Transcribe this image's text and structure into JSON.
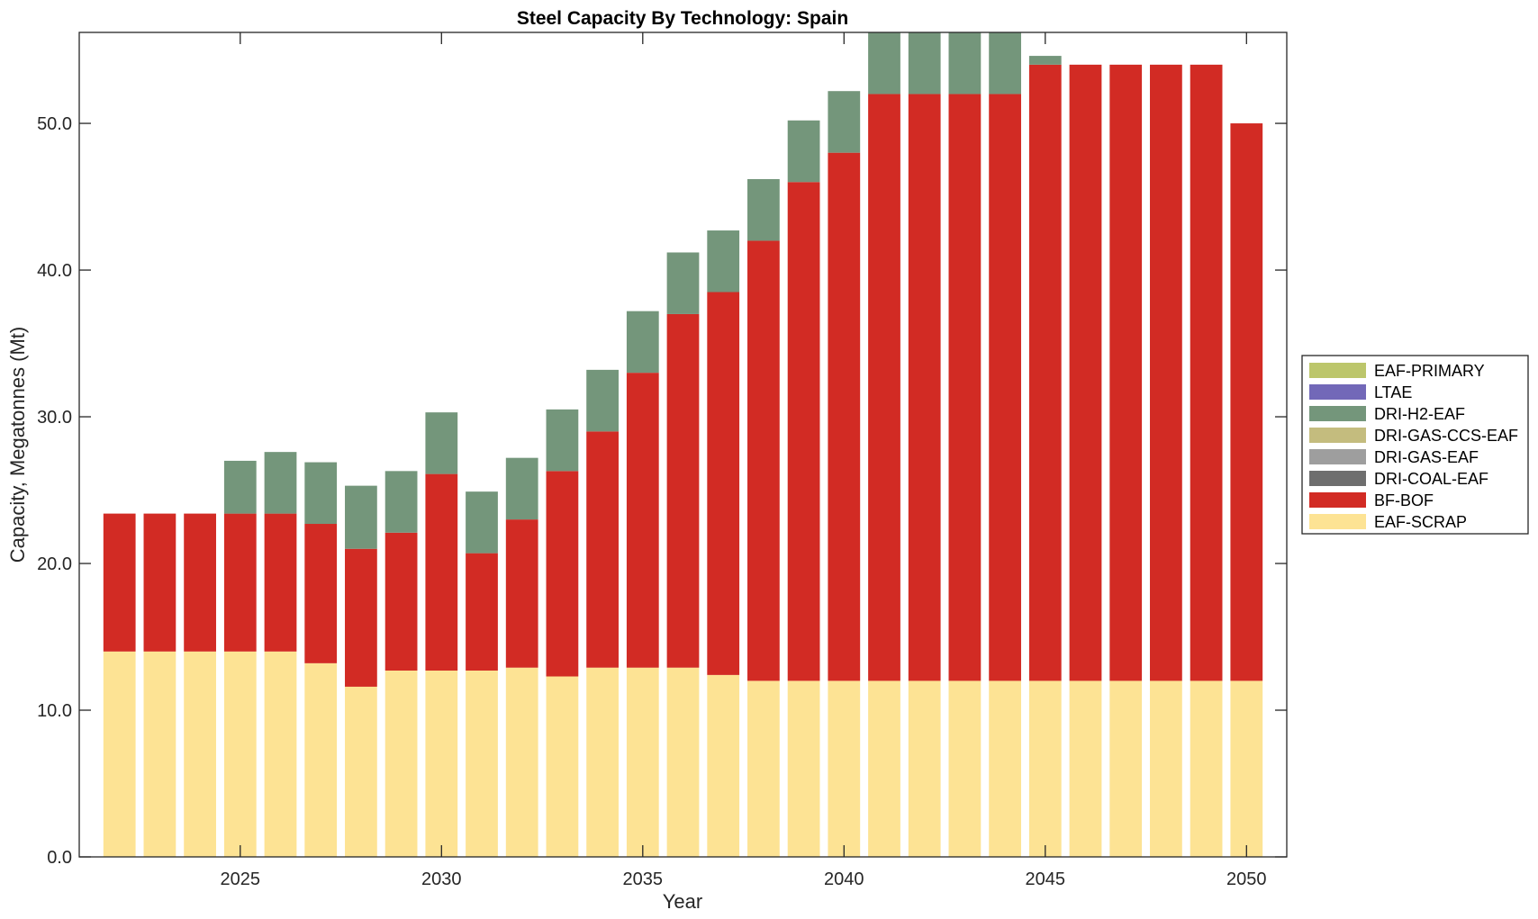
{
  "chart_data": {
    "type": "bar",
    "stacked": true,
    "title": "Steel Capacity By Technology: Spain",
    "xlabel": "Year",
    "ylabel": "Capacity, Megatonnes (Mt)",
    "xlim": [
      2021,
      2051
    ],
    "ylim": [
      0,
      56.2
    ],
    "xticks": [
      2025,
      2030,
      2035,
      2040,
      2045,
      2050
    ],
    "xtick_labels": [
      "2025",
      "2030",
      "2035",
      "2040",
      "2045",
      "2050"
    ],
    "yticks": [
      0,
      10,
      20,
      30,
      40,
      50
    ],
    "ytick_labels": [
      "0.0",
      "10.0",
      "20.0",
      "30.0",
      "40.0",
      "50.0"
    ],
    "grid": false,
    "legend_position": "right-outside",
    "categories": [
      2022,
      2023,
      2024,
      2025,
      2026,
      2027,
      2028,
      2029,
      2030,
      2031,
      2032,
      2033,
      2034,
      2035,
      2036,
      2037,
      2038,
      2039,
      2040,
      2041,
      2042,
      2043,
      2044,
      2045,
      2046,
      2047,
      2048,
      2049,
      2050
    ],
    "series": [
      {
        "name": "EAF-SCRAP",
        "color": "#fde394",
        "values": [
          14.0,
          14.0,
          14.0,
          14.0,
          14.0,
          13.2,
          11.6,
          12.7,
          12.7,
          12.7,
          12.9,
          12.3,
          12.9,
          12.9,
          12.9,
          12.4,
          12.0,
          12.0,
          12.0,
          12.0,
          12.0,
          12.0,
          12.0,
          12.0,
          12.0,
          12.0,
          12.0,
          12.0,
          12.0
        ]
      },
      {
        "name": "BF-BOF",
        "color": "#d22b24",
        "values": [
          9.4,
          9.4,
          9.4,
          9.4,
          9.4,
          9.5,
          9.4,
          9.4,
          13.4,
          8.0,
          10.1,
          14.0,
          16.1,
          20.1,
          24.1,
          26.1,
          30.0,
          34.0,
          36.0,
          40.0,
          40.0,
          40.0,
          40.0,
          42.0,
          42.0,
          42.0,
          42.0,
          42.0,
          38.0
        ]
      },
      {
        "name": "DRI-COAL-EAF",
        "color": "#6e6e6e",
        "values": [
          0,
          0,
          0,
          0,
          0,
          0,
          0,
          0,
          0,
          0,
          0,
          0,
          0,
          0,
          0,
          0,
          0,
          0,
          0,
          0,
          0,
          0,
          0,
          0,
          0,
          0,
          0,
          0,
          0
        ]
      },
      {
        "name": "DRI-GAS-EAF",
        "color": "#9e9e9e",
        "values": [
          0,
          0,
          0,
          0,
          0,
          0,
          0,
          0,
          0,
          0,
          0,
          0,
          0,
          0,
          0,
          0,
          0,
          0,
          0,
          0,
          0,
          0,
          0,
          0,
          0,
          0,
          0,
          0,
          0
        ]
      },
      {
        "name": "DRI-GAS-CCS-EAF",
        "color": "#c4bc7e",
        "values": [
          0,
          0,
          0,
          0,
          0,
          0,
          0,
          0,
          0,
          0,
          0,
          0,
          0,
          0,
          0,
          0,
          0,
          0,
          0,
          0,
          0,
          0,
          0,
          0,
          0,
          0,
          0,
          0,
          0
        ]
      },
      {
        "name": "DRI-H2-EAF",
        "color": "#74967b",
        "values": [
          0,
          0,
          0,
          3.6,
          4.2,
          4.2,
          4.3,
          4.2,
          4.2,
          4.2,
          4.2,
          4.2,
          4.2,
          4.2,
          4.2,
          4.2,
          4.2,
          4.2,
          4.2,
          4.2,
          4.2,
          4.2,
          4.2,
          0.6,
          0,
          0,
          0,
          0,
          0
        ]
      },
      {
        "name": "LTAE",
        "color": "#7268b8",
        "values": [
          0,
          0,
          0,
          0,
          0,
          0,
          0,
          0,
          0,
          0,
          0,
          0,
          0,
          0,
          0,
          0,
          0,
          0,
          0,
          0,
          0,
          0,
          0,
          0,
          0,
          0,
          0,
          0,
          0
        ]
      },
      {
        "name": "EAF-PRIMARY",
        "color": "#bcc66b",
        "values": [
          0,
          0,
          0,
          0,
          0,
          0,
          0,
          0,
          0,
          0,
          0,
          0,
          0,
          0,
          0,
          0,
          0,
          0,
          0,
          0,
          0,
          0,
          0,
          0,
          0,
          0,
          0,
          0,
          0
        ]
      }
    ],
    "legend_order": [
      "EAF-PRIMARY",
      "LTAE",
      "DRI-H2-EAF",
      "DRI-GAS-CCS-EAF",
      "DRI-GAS-EAF",
      "DRI-COAL-EAF",
      "BF-BOF",
      "EAF-SCRAP"
    ]
  }
}
